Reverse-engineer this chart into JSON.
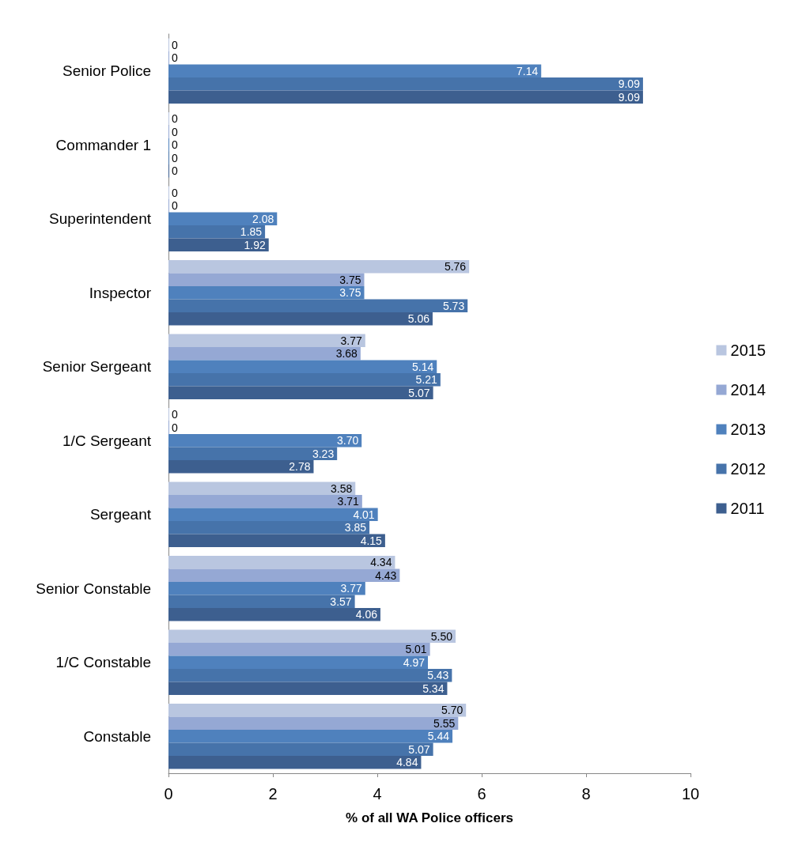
{
  "chart_data": {
    "type": "bar",
    "orientation": "horizontal",
    "xlabel": "% of all WA Police officers",
    "categories": [
      "Senior Police",
      "Commander 1",
      "Superintendent",
      "Inspector",
      "Senior Sergeant",
      "1/C Sergeant",
      "Sergeant",
      "Senior Constable",
      "1/C Constable",
      "Constable"
    ],
    "series": [
      {
        "name": "2015",
        "color": "#b9c6e0",
        "values": [
          0,
          0,
          0,
          5.76,
          3.77,
          0,
          3.58,
          4.34,
          5.5,
          5.7
        ],
        "value_labels": [
          "0",
          "0",
          "0",
          "5.76",
          "3.77",
          "0",
          "3.58",
          "4.34",
          "5.50",
          "5.70"
        ]
      },
      {
        "name": "2014",
        "color": "#95a8d4",
        "values": [
          0,
          0,
          0,
          3.75,
          3.68,
          0,
          3.71,
          4.43,
          5.01,
          5.55
        ],
        "value_labels": [
          "0",
          "0",
          "0",
          "3.75",
          "3.68",
          "0",
          "3.71",
          "4.43",
          "5.01",
          "5.55"
        ]
      },
      {
        "name": "2013",
        "color": "#4f81bd",
        "values": [
          7.14,
          0,
          2.08,
          3.75,
          5.14,
          3.7,
          4.01,
          3.77,
          4.97,
          5.44
        ],
        "value_labels": [
          "7.14",
          "0",
          "2.08",
          "3.75",
          "5.14",
          "3.70",
          "4.01",
          "3.77",
          "4.97",
          "5.44"
        ]
      },
      {
        "name": "2012",
        "color": "#4673aa",
        "values": [
          9.09,
          0,
          1.85,
          5.73,
          5.21,
          3.23,
          3.85,
          3.57,
          5.43,
          5.07
        ],
        "value_labels": [
          "9.09",
          "0",
          "1.85",
          "5.73",
          "5.21",
          "3.23",
          "3.85",
          "3.57",
          "5.43",
          "5.07"
        ]
      },
      {
        "name": "2011",
        "color": "#3d5f8f",
        "values": [
          9.09,
          0,
          1.92,
          5.06,
          5.07,
          2.78,
          4.15,
          4.06,
          5.34,
          4.84
        ],
        "value_labels": [
          "9.09",
          "0",
          "1.92",
          "5.06",
          "5.07",
          "2.78",
          "4.15",
          "4.06",
          "5.34",
          "4.84"
        ]
      }
    ],
    "xlim": [
      0,
      10
    ],
    "xticks": [
      0,
      2,
      4,
      6,
      8,
      10
    ],
    "grid": false,
    "legend": "right"
  }
}
